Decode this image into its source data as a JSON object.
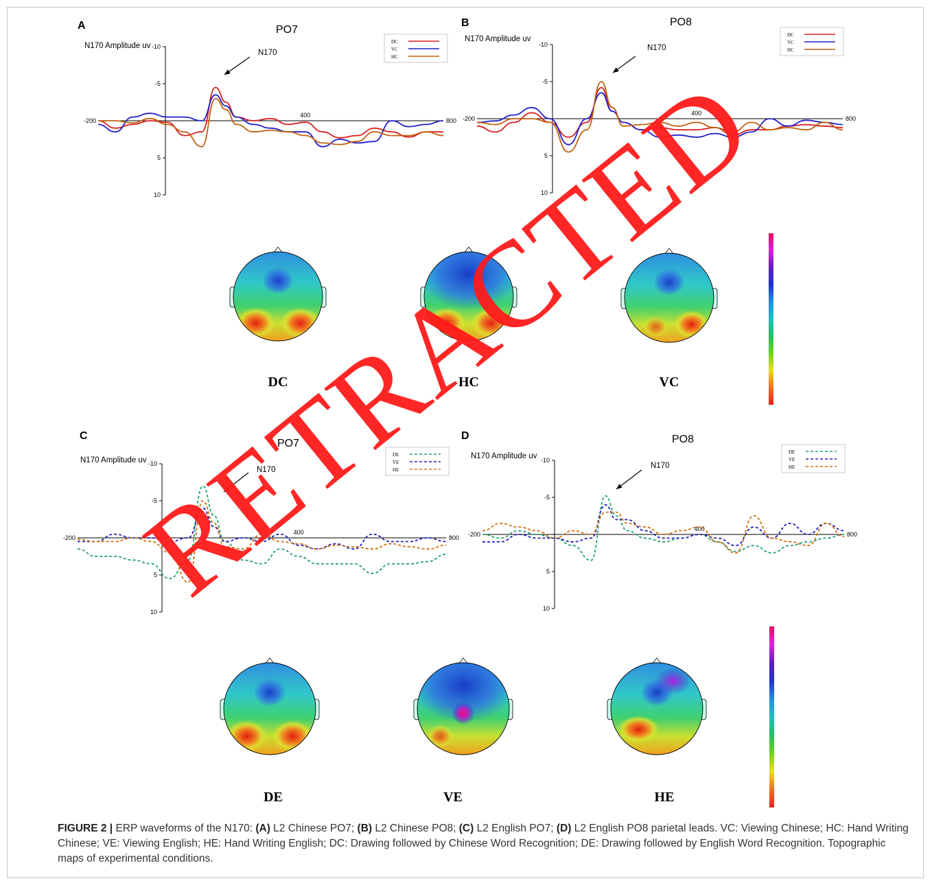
{
  "chart_data": [
    {
      "type": "line",
      "panel_label": "A",
      "title": "PO7",
      "ylabel": "N170 Amplitude uv",
      "yticks": [
        "-10",
        "-5",
        "5",
        "10"
      ],
      "xticks": [
        "-200",
        "400",
        "800"
      ],
      "xlim": [
        -200,
        800
      ],
      "ylim": [
        -10,
        10
      ],
      "y_inverted": true,
      "annotation": "N170",
      "line_style": "solid",
      "legend_position": "top-right",
      "x": [
        -200,
        -150,
        -100,
        -50,
        0,
        50,
        100,
        140,
        170,
        200,
        250,
        300,
        350,
        400,
        450,
        500,
        550,
        600,
        650,
        700,
        750,
        800
      ],
      "series": [
        {
          "name": "DC",
          "color": "#d62020",
          "values": [
            0,
            1,
            0.5,
            0,
            0.2,
            2,
            1.5,
            -4.5,
            -2.5,
            -0.5,
            0,
            -0.3,
            0.5,
            0.2,
            1.5,
            2.3,
            2,
            1,
            1.5,
            2.2,
            1.5,
            1.5
          ]
        },
        {
          "name": "VC",
          "color": "#2020c8",
          "values": [
            0.5,
            1.5,
            -0.5,
            -1,
            -0.5,
            -0.5,
            0,
            -3.5,
            -2,
            -0.5,
            0.5,
            1,
            1.5,
            1.5,
            3.5,
            2.5,
            3,
            2.8,
            0,
            0.8,
            0.5,
            0
          ]
        },
        {
          "name": "HC",
          "color": "#c06010",
          "values": [
            0,
            0,
            0.3,
            -0.3,
            0.5,
            1.5,
            3.5,
            -3,
            -1.5,
            0.5,
            1.5,
            1.3,
            1.5,
            2,
            3,
            3.2,
            2.8,
            1.5,
            2,
            2,
            1.5,
            2
          ]
        }
      ]
    },
    {
      "type": "line",
      "panel_label": "B",
      "title": "PO8",
      "ylabel": "N170 Amplitude uv",
      "yticks": [
        "-10",
        "-5",
        "5",
        "10"
      ],
      "xticks": [
        "-200",
        "400",
        "800"
      ],
      "xlim": [
        -200,
        800
      ],
      "ylim": [
        -10,
        10
      ],
      "y_inverted": true,
      "annotation": "N170",
      "line_style": "solid",
      "legend_position": "top-right",
      "x": [
        -200,
        -150,
        -100,
        -50,
        0,
        50,
        100,
        140,
        170,
        200,
        250,
        300,
        350,
        400,
        450,
        500,
        550,
        600,
        650,
        700,
        750,
        800
      ],
      "series": [
        {
          "name": "DC",
          "color": "#d62020",
          "values": [
            1,
            1.8,
            0.5,
            -0.8,
            0.5,
            2.5,
            0.5,
            -4.2,
            -1,
            0.5,
            1.5,
            1.2,
            1.5,
            1.5,
            1.2,
            2.2,
            1.5,
            1.5,
            1,
            0.8,
            1,
            1.2
          ]
        },
        {
          "name": "VC",
          "color": "#2020c8",
          "values": [
            0.5,
            0.3,
            -0.5,
            -1.5,
            0,
            3.5,
            0,
            -3.5,
            -1,
            0.5,
            1.5,
            2.5,
            2.2,
            2.5,
            2,
            2.5,
            1.8,
            0,
            1,
            0.2,
            0.5,
            0.8
          ]
        },
        {
          "name": "HC",
          "color": "#c06010",
          "values": [
            0.5,
            0.8,
            0,
            0,
            0.5,
            4.5,
            1.5,
            -5,
            -1.5,
            1,
            0.8,
            0.5,
            1,
            0.5,
            1.2,
            1.8,
            0.5,
            1.5,
            1.2,
            1.5,
            0.5,
            1.5
          ]
        }
      ]
    },
    {
      "type": "line",
      "panel_label": "C",
      "title": "PO7",
      "ylabel": "N170 Amplitude uv",
      "yticks": [
        "-10",
        "-5",
        "5",
        "10"
      ],
      "xticks": [
        "-200",
        "400",
        "800"
      ],
      "xlim": [
        -200,
        800
      ],
      "ylim": [
        -10,
        10
      ],
      "y_inverted": true,
      "annotation": "N170",
      "line_style": "dashed",
      "legend_position": "top-right",
      "x": [
        -200,
        -150,
        -100,
        -50,
        0,
        50,
        100,
        140,
        170,
        200,
        250,
        300,
        350,
        400,
        450,
        500,
        550,
        600,
        650,
        700,
        750,
        800
      ],
      "series": [
        {
          "name": "DE",
          "color": "#20a070",
          "values": [
            1.5,
            2.5,
            2.5,
            3,
            3.5,
            5.5,
            3,
            -7,
            -3,
            0.5,
            3,
            3.5,
            1.5,
            2.5,
            3.5,
            3.5,
            3.5,
            4.8,
            3.5,
            3.5,
            3.2,
            2.2
          ]
        },
        {
          "name": "VE",
          "color": "#2020b8",
          "values": [
            0.5,
            0.5,
            -0.5,
            0,
            0,
            0.5,
            0,
            -4,
            -1.5,
            0.5,
            0,
            0.5,
            -0.5,
            1,
            1.5,
            0.8,
            1.5,
            -0.5,
            0.5,
            0.5,
            0,
            0.5
          ]
        },
        {
          "name": "HE",
          "color": "#d07010",
          "values": [
            0.2,
            0.5,
            0.5,
            0,
            0.5,
            2,
            6,
            -5,
            -2,
            1.2,
            1.5,
            -0.5,
            0.5,
            0.8,
            1.5,
            1,
            1.2,
            1.5,
            0.8,
            1.2,
            1.5,
            1
          ]
        }
      ]
    },
    {
      "type": "line",
      "panel_label": "D",
      "title": "PO8",
      "ylabel": "N170 Amplitude uv",
      "yticks": [
        "-10",
        "-5",
        "5",
        "10"
      ],
      "xticks": [
        "-200",
        "400",
        "800"
      ],
      "xlim": [
        -200,
        800
      ],
      "ylim": [
        -10,
        10
      ],
      "y_inverted": true,
      "annotation": "N170",
      "line_style": "dashed",
      "legend_position": "top-right",
      "x": [
        -200,
        -150,
        -100,
        -50,
        0,
        50,
        100,
        140,
        170,
        200,
        250,
        300,
        350,
        400,
        450,
        500,
        550,
        600,
        650,
        700,
        750,
        800
      ],
      "series": [
        {
          "name": "DE",
          "color": "#20a070",
          "values": [
            0,
            0.5,
            -0.5,
            0,
            0.5,
            1.5,
            3.5,
            -5.2,
            -2.5,
            -0.5,
            0.5,
            1,
            0.5,
            0,
            1,
            2.3,
            1.5,
            2.5,
            1.5,
            1,
            0.5,
            0
          ]
        },
        {
          "name": "VE",
          "color": "#2020b8",
          "values": [
            1,
            1,
            0,
            0.5,
            0.5,
            1,
            0.5,
            -4,
            -2,
            -2,
            -0.5,
            0.5,
            0.5,
            0,
            0.5,
            1.5,
            -1,
            0.5,
            -1.5,
            0,
            -1.5,
            -0.5
          ]
        },
        {
          "name": "HE",
          "color": "#d07010",
          "values": [
            -0.5,
            -1.5,
            -1,
            -0.5,
            0.5,
            -0.5,
            0,
            -3,
            -3,
            -1.5,
            -1,
            0,
            -0.5,
            -1,
            1,
            2.5,
            -2.5,
            0.5,
            1,
            1.5,
            -1.5,
            0.3
          ]
        }
      ]
    }
  ],
  "topomaps": [
    {
      "label": "DC",
      "pattern": "posterior-bilateral"
    },
    {
      "label": "HC",
      "pattern": "posterior-bilateral-blue-frontal"
    },
    {
      "label": "VC",
      "pattern": "posterior-right"
    },
    {
      "label": "DE",
      "pattern": "posterior-bilateral"
    },
    {
      "label": "VE",
      "pattern": "central-focal"
    },
    {
      "label": "HE",
      "pattern": "posterior-left-purple-frontal"
    }
  ],
  "colorbar_colors": [
    "#e8201e",
    "#f07020",
    "#e8e020",
    "#70d020",
    "#20c060",
    "#20c0c0",
    "#2090e0",
    "#2030d0",
    "#6020c0",
    "#e020e0",
    "#e01060"
  ],
  "watermark_text": "RETRACTED",
  "caption": {
    "lead": "FIGURE 2 |",
    "t1": " ERP waveforms of the N170: ",
    "a": "(A)",
    "t2": " L2 Chinese PO7; ",
    "b": "(B)",
    "t3": " L2 Chinese PO8; ",
    "c": "(C)",
    "t4": " L2 English PO7; ",
    "d": "(D)",
    "t5": " L2 English PO8 parietal leads. VC: Viewing Chinese; HC: Hand Writing Chinese; VE: Viewing English; HE: Hand Writing English; DC: Drawing followed by Chinese Word Recognition; DE: Drawing followed by English Word Recognition. Topographic maps of experimental conditions."
  }
}
